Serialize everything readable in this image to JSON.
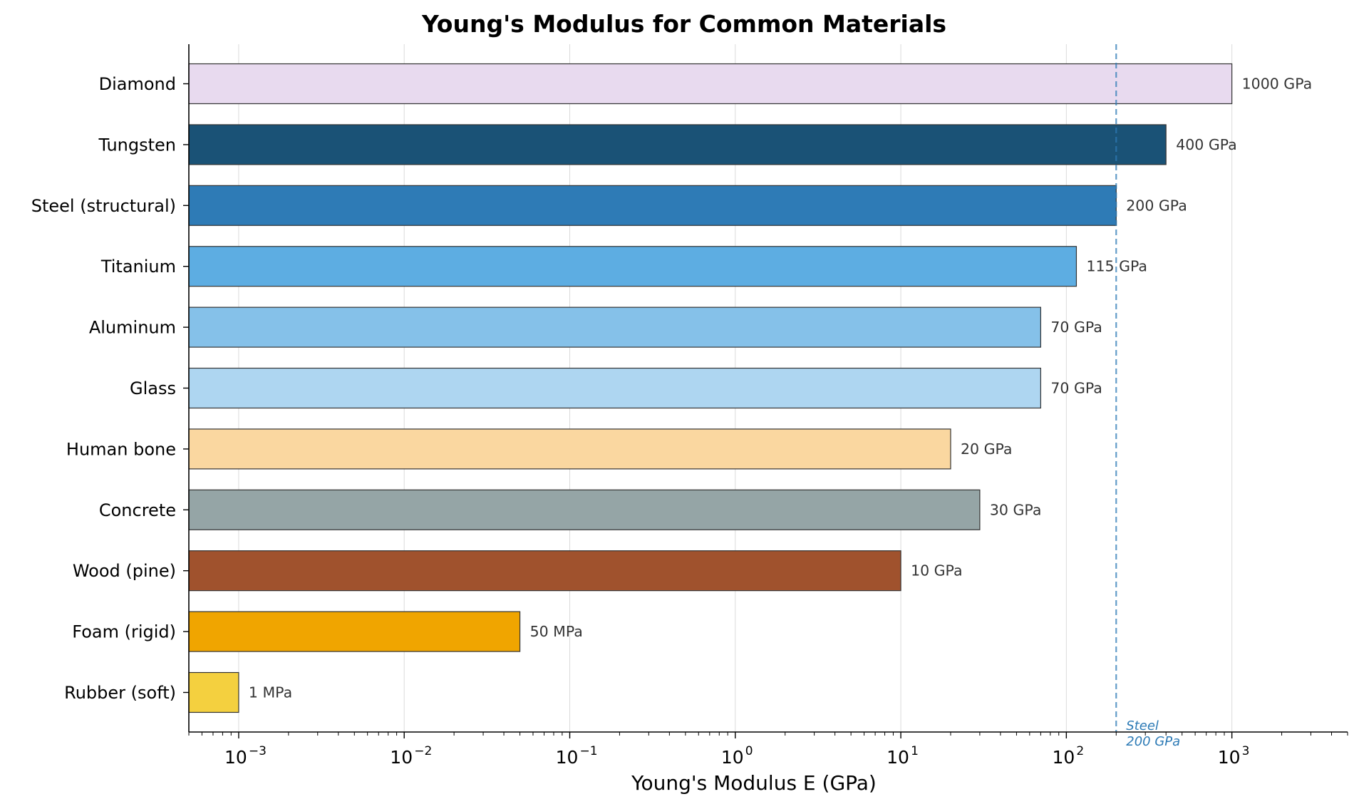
{
  "chart_data": {
    "type": "bar",
    "orientation": "horizontal",
    "title": "Young's Modulus for Common Materials",
    "xlabel": "Young's Modulus E (GPa)",
    "ylabel": "",
    "x_scale": "log",
    "xlim": [
      0.0005,
      5000
    ],
    "x_ticks": [
      {
        "value": 0.001,
        "base": "10",
        "exp": "−3"
      },
      {
        "value": 0.01,
        "base": "10",
        "exp": "−2"
      },
      {
        "value": 0.1,
        "base": "10",
        "exp": "−1"
      },
      {
        "value": 1,
        "base": "10",
        "exp": "0"
      },
      {
        "value": 10,
        "base": "10",
        "exp": "1"
      },
      {
        "value": 100,
        "base": "10",
        "exp": "2"
      },
      {
        "value": 1000,
        "base": "10",
        "exp": "3"
      }
    ],
    "grid": "vertical major gridlines",
    "categories": [
      "Diamond",
      "Tungsten",
      "Steel (structural)",
      "Titanium",
      "Aluminum",
      "Glass",
      "Human bone",
      "Concrete",
      "Wood (pine)",
      "Foam (rigid)",
      "Rubber (soft)"
    ],
    "values": [
      1000,
      400,
      200,
      115,
      70,
      70,
      20,
      30,
      10,
      0.05,
      0.001
    ],
    "value_labels": [
      "1000 GPa",
      "400 GPa",
      "200 GPa",
      "115 GPa",
      "70 GPa",
      "70 GPa",
      "20 GPa",
      "30 GPa",
      "10 GPa",
      "50 MPa",
      "1 MPa"
    ],
    "colors": [
      "#e8daef",
      "#1a5276",
      "#2e7bb6",
      "#5dade2",
      "#85c1e9",
      "#aed6f1",
      "#fad7a0",
      "#95a5a6",
      "#a0522d",
      "#f0a500",
      "#f4d03f"
    ],
    "reference_line": {
      "value": 200,
      "label_line1": "Steel",
      "label_line2": "200 GPa",
      "color": "#2e7bb6",
      "style": "dashed"
    }
  }
}
